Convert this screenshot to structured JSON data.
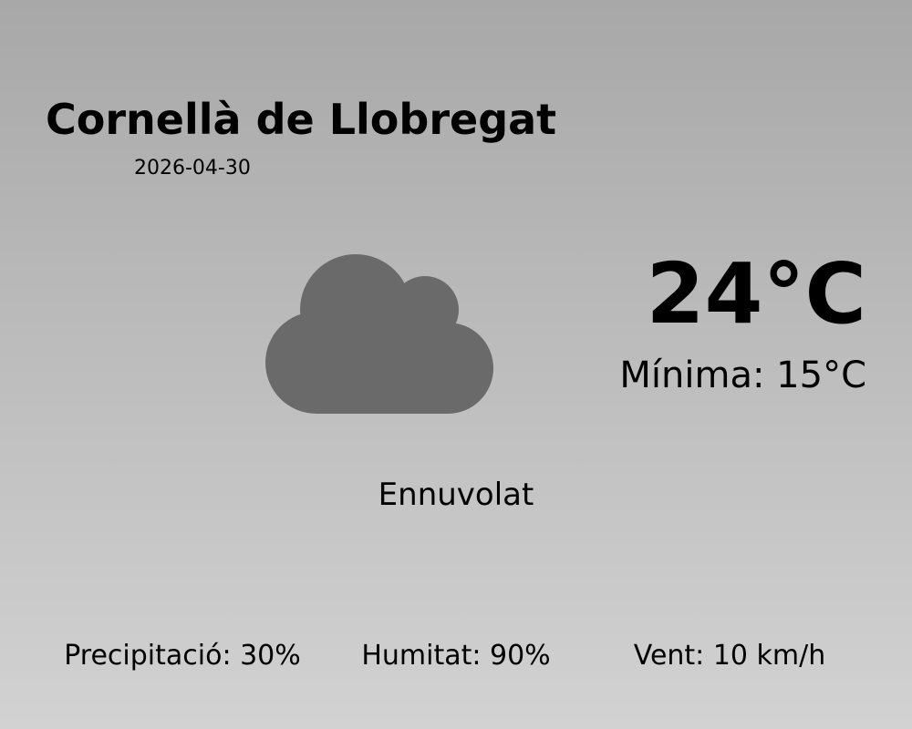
{
  "city": "Cornellà de Llobregat",
  "date": "2026-04-30",
  "temperature": "24°C",
  "minimum": "Mínima: 15°C",
  "condition": "Ennuvolat",
  "icon": "cloud-icon",
  "colors": {
    "icon": "#6a6a6a",
    "background_top": "#a8a8a8",
    "background_bottom": "#d2d2d2"
  },
  "stats": {
    "precipitation": "Precipitació: 30%",
    "humidity": "Humitat: 90%",
    "wind": "Vent: 10 km/h"
  }
}
